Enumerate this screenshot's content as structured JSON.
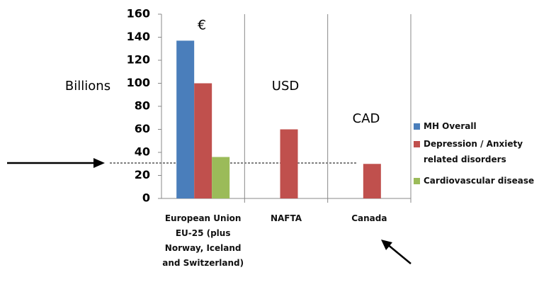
{
  "chart_data": {
    "type": "bar",
    "categories": [
      "European Union EU-25 (plus Norway, Iceland and Switzerland)",
      "NAFTA",
      "Canada"
    ],
    "series": [
      {
        "name": "MH Overall",
        "color": "#4a7ebb",
        "values": [
          137,
          null,
          null
        ]
      },
      {
        "name": "Depression / Anxiety related disorders",
        "color": "#c0504d",
        "values": [
          100,
          60,
          30
        ]
      },
      {
        "name": "Cardiovascular disease",
        "color": "#9bbb59",
        "values": [
          36,
          null,
          null
        ]
      }
    ],
    "ylim": [
      0,
      160
    ],
    "yticks": [
      0,
      20,
      40,
      60,
      80,
      100,
      120,
      140,
      160
    ],
    "annotations": [
      "€",
      "USD",
      "CAD",
      "Billions"
    ],
    "legend": "right"
  }
}
